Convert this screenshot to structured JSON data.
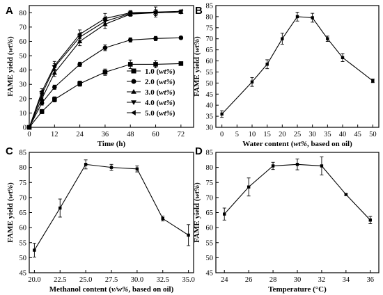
{
  "chart_data": [
    {
      "panel": "A",
      "type": "line",
      "xlabel": "Time (h)",
      "ylabel_prefix": "FAME yield (",
      "ylabel_italic": "wt%",
      "ylabel_suffix": ")",
      "xlim": [
        0,
        78
      ],
      "ylim": [
        0,
        85
      ],
      "xticks": [
        0,
        12,
        24,
        36,
        48,
        60,
        72
      ],
      "yticks": [
        0,
        10,
        20,
        30,
        40,
        50,
        60,
        70,
        80
      ],
      "x": [
        0,
        6,
        12,
        24,
        36,
        48,
        60,
        72
      ],
      "legend_position": "lower-right",
      "series": [
        {
          "name": "1.0 (wt%)",
          "name_value": "1.0",
          "name_unit": "wt%",
          "marker": "square",
          "values": [
            0,
            11,
            19.5,
            30.5,
            38.5,
            44,
            44,
            44.5
          ],
          "errors": [
            0,
            1.5,
            1.8,
            1.8,
            2.2,
            3,
            2.5,
            1
          ]
        },
        {
          "name": "2.0 (wt%)",
          "name_value": "2.0",
          "name_unit": "wt%",
          "marker": "circle",
          "values": [
            0,
            17,
            28,
            44,
            55.5,
            61,
            62,
            62.5
          ],
          "errors": [
            0,
            1.5,
            1.5,
            1.5,
            2,
            1.5,
            1.5,
            1
          ]
        },
        {
          "name": "3.0 (wt%)",
          "name_value": "3.0",
          "name_unit": "wt%",
          "marker": "triangle-up",
          "values": [
            0,
            20,
            38,
            60,
            72,
            79,
            80,
            80.5
          ],
          "errors": [
            0,
            2,
            2.5,
            3,
            3,
            1.5,
            2,
            1
          ]
        },
        {
          "name": "4.0 (wt%)",
          "name_value": "4.0",
          "name_unit": "wt%",
          "marker": "triangle-down",
          "values": [
            0,
            23,
            42,
            63,
            74,
            79.5,
            80,
            80.5
          ],
          "errors": [
            0,
            2,
            2.5,
            2.5,
            3,
            1.5,
            2,
            1
          ]
        },
        {
          "name": "5.0 (wt%)",
          "name_value": "5.0",
          "name_unit": "wt%",
          "marker": "triangle-left",
          "values": [
            0,
            25,
            43,
            65,
            76,
            80,
            80.5,
            81
          ],
          "errors": [
            0,
            2,
            3,
            3,
            3.5,
            1.5,
            3.5,
            1
          ]
        }
      ]
    },
    {
      "panel": "B",
      "type": "line",
      "xlabel_prefix": "Water  content (",
      "xlabel_italic": "wt%",
      "xlabel_suffix": ", based on oil)",
      "ylabel_prefix": "FAME yield (",
      "ylabel_italic": "wt%",
      "ylabel_suffix": ")",
      "xlim": [
        -2,
        52
      ],
      "ylim": [
        30,
        85
      ],
      "xticks": [
        0,
        5,
        10,
        15,
        20,
        25,
        30,
        35,
        40,
        45,
        50
      ],
      "yticks": [
        30,
        35,
        40,
        45,
        50,
        55,
        60,
        65,
        70,
        75,
        80,
        85
      ],
      "x": [
        0,
        10,
        15,
        20,
        25,
        30,
        35,
        40,
        50
      ],
      "values": [
        36,
        50.5,
        58.5,
        70,
        80,
        79.5,
        70,
        61.5,
        51
      ],
      "errors": [
        1.5,
        2,
        2,
        2.5,
        2,
        2,
        1.2,
        1.8,
        0.8
      ]
    },
    {
      "panel": "C",
      "type": "line",
      "xlabel": "Methanol content (v/w%, based on oil)",
      "xlabel_prefix": "Methanol content (",
      "xlabel_italic": "v/w%",
      "xlabel_suffix": ", based on oil)",
      "ylabel_prefix": "FAME yield (",
      "ylabel_italic": "wt%",
      "ylabel_suffix": ")",
      "xlim": [
        19.5,
        35.5
      ],
      "ylim": [
        45,
        85
      ],
      "xticks": [
        "20.0",
        "22.5",
        "25.0",
        "27.5",
        "30.0",
        "32.5",
        "35.0"
      ],
      "yticks": [
        45,
        50,
        55,
        60,
        65,
        70,
        75,
        80,
        85
      ],
      "x": [
        20,
        22.5,
        25,
        27.5,
        30,
        32.5,
        35
      ],
      "values": [
        52.5,
        66.5,
        81,
        80,
        79.5,
        63,
        57.5
      ],
      "errors": [
        2.3,
        3,
        1.5,
        1,
        1,
        0.8,
        3.5
      ]
    },
    {
      "panel": "D",
      "type": "line",
      "xlabel": "Temperature (°C)",
      "ylabel_prefix": "FAME yield (",
      "ylabel_italic": "wt%",
      "ylabel_suffix": ")",
      "xlim": [
        23.3,
        36.7
      ],
      "ylim": [
        45,
        85
      ],
      "xticks": [
        24,
        26,
        28,
        30,
        32,
        34,
        36
      ],
      "yticks": [
        45,
        50,
        55,
        60,
        65,
        70,
        75,
        80,
        85
      ],
      "x": [
        24,
        26,
        28,
        30,
        32,
        34,
        36
      ],
      "values": [
        64.5,
        73.5,
        80.5,
        81,
        80.5,
        71,
        62.5
      ],
      "errors": [
        2,
        3,
        1.2,
        1.8,
        3,
        0.3,
        1.2
      ]
    }
  ]
}
